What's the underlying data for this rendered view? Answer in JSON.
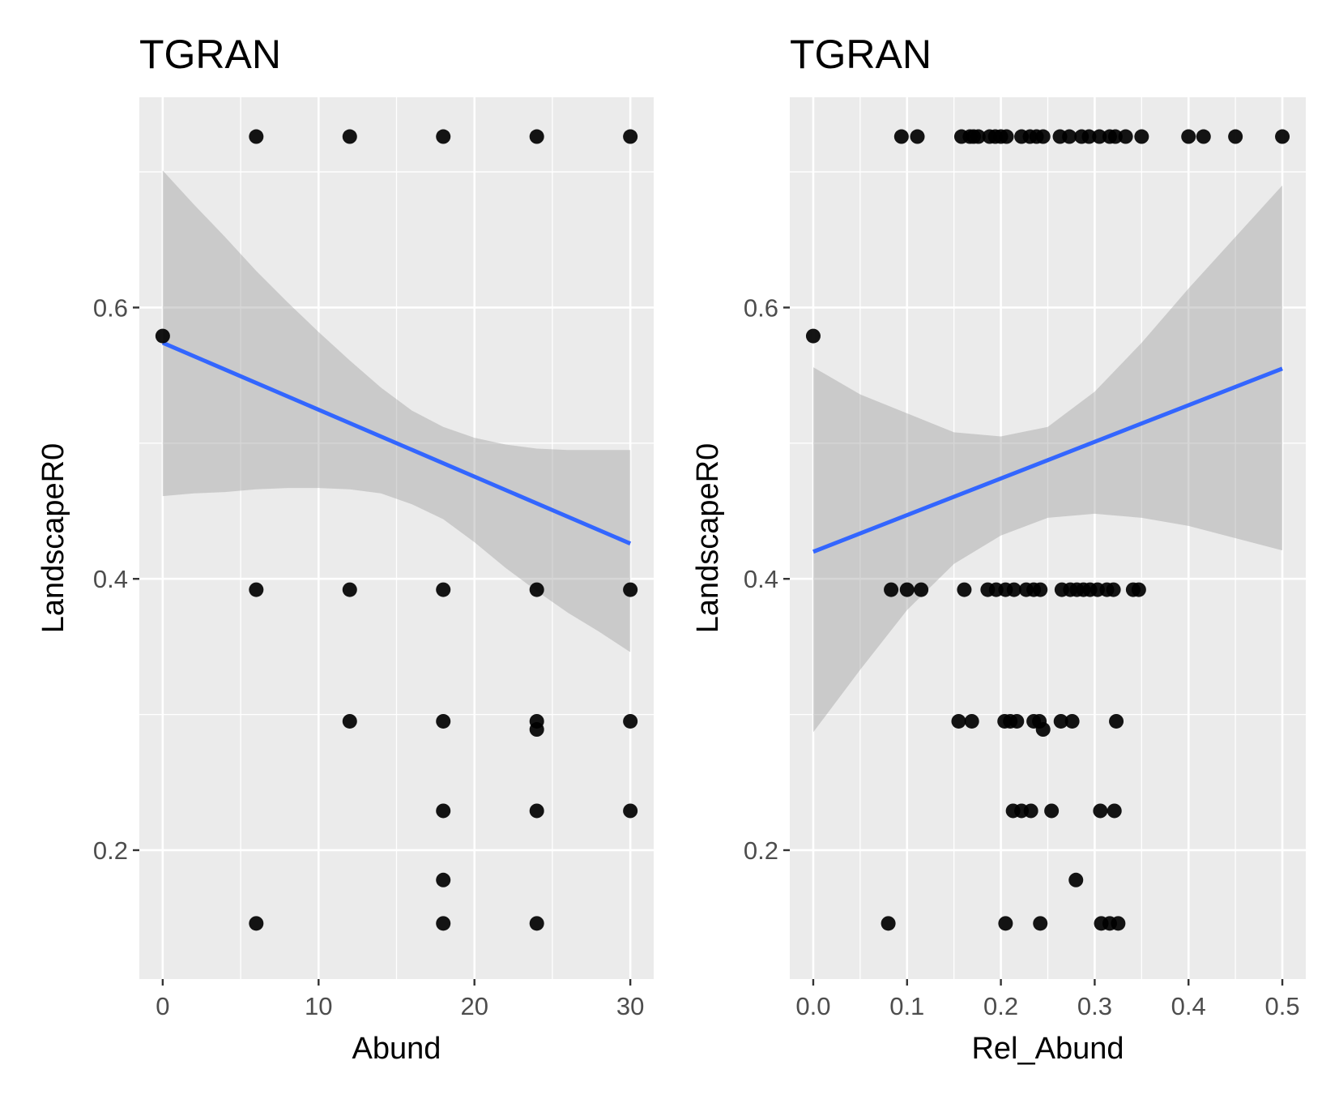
{
  "chart_data": [
    {
      "type": "scatter",
      "title": "TGRAN",
      "xlabel": "Abund",
      "ylabel": "LandscapeR0",
      "xlim": [
        -1.5,
        31.5
      ],
      "ylim": [
        0.105,
        0.755
      ],
      "x_ticks": [
        0,
        10,
        20,
        30
      ],
      "x_tick_labels": [
        "0",
        "10",
        "20",
        "30"
      ],
      "y_ticks": [
        0.2,
        0.4,
        0.6
      ],
      "y_tick_labels": [
        "0.2",
        "0.4",
        "0.6"
      ],
      "colors": {
        "point": "#000000",
        "line": "#3366ff",
        "band": "#999999",
        "panel": "#ebebeb",
        "grid": "#ffffff"
      },
      "points": [
        [
          0,
          0.579
        ],
        [
          6,
          0.726
        ],
        [
          12,
          0.726
        ],
        [
          18,
          0.726
        ],
        [
          24,
          0.726
        ],
        [
          30,
          0.726
        ],
        [
          6,
          0.392
        ],
        [
          12,
          0.392
        ],
        [
          18,
          0.392
        ],
        [
          24,
          0.392
        ],
        [
          30,
          0.392
        ],
        [
          12,
          0.295
        ],
        [
          18,
          0.295
        ],
        [
          24,
          0.295
        ],
        [
          24,
          0.289
        ],
        [
          30,
          0.295
        ],
        [
          18,
          0.229
        ],
        [
          24,
          0.229
        ],
        [
          30,
          0.229
        ],
        [
          18,
          0.178
        ],
        [
          6,
          0.146
        ],
        [
          18,
          0.146
        ],
        [
          24,
          0.146
        ]
      ],
      "fit_line": {
        "x": [
          0,
          30
        ],
        "y": [
          0.574,
          0.426
        ]
      },
      "confidence_band": {
        "x": [
          0,
          2,
          4,
          6,
          8,
          10,
          12,
          14,
          16,
          18,
          20,
          22,
          24,
          26,
          28,
          30
        ],
        "lower": [
          0.461,
          0.463,
          0.464,
          0.466,
          0.467,
          0.467,
          0.466,
          0.463,
          0.455,
          0.444,
          0.427,
          0.408,
          0.391,
          0.375,
          0.361,
          0.346
        ],
        "upper": [
          0.701,
          0.676,
          0.652,
          0.627,
          0.604,
          0.582,
          0.561,
          0.541,
          0.524,
          0.512,
          0.504,
          0.499,
          0.496,
          0.495,
          0.495,
          0.495
        ]
      }
    },
    {
      "type": "scatter",
      "title": "TGRAN",
      "xlabel": "Rel_Abund",
      "ylabel": "LandscapeR0",
      "xlim": [
        -0.025,
        0.525
      ],
      "ylim": [
        0.105,
        0.755
      ],
      "x_ticks": [
        0.0,
        0.1,
        0.2,
        0.3,
        0.4,
        0.5
      ],
      "x_tick_labels": [
        "0.0",
        "0.1",
        "0.2",
        "0.3",
        "0.4",
        "0.5"
      ],
      "y_ticks": [
        0.2,
        0.4,
        0.6
      ],
      "y_tick_labels": [
        "0.2",
        "0.4",
        "0.6"
      ],
      "colors": {
        "point": "#000000",
        "line": "#3366ff",
        "band": "#999999",
        "panel": "#ebebeb",
        "grid": "#ffffff"
      },
      "points": [
        [
          0.0,
          0.579
        ],
        [
          0.094,
          0.726
        ],
        [
          0.111,
          0.726
        ],
        [
          0.158,
          0.726
        ],
        [
          0.167,
          0.726
        ],
        [
          0.171,
          0.726
        ],
        [
          0.176,
          0.726
        ],
        [
          0.188,
          0.726
        ],
        [
          0.194,
          0.726
        ],
        [
          0.2,
          0.726
        ],
        [
          0.206,
          0.726
        ],
        [
          0.222,
          0.726
        ],
        [
          0.231,
          0.726
        ],
        [
          0.238,
          0.726
        ],
        [
          0.245,
          0.726
        ],
        [
          0.263,
          0.726
        ],
        [
          0.273,
          0.726
        ],
        [
          0.286,
          0.726
        ],
        [
          0.294,
          0.726
        ],
        [
          0.305,
          0.726
        ],
        [
          0.316,
          0.726
        ],
        [
          0.322,
          0.726
        ],
        [
          0.333,
          0.726
        ],
        [
          0.35,
          0.726
        ],
        [
          0.4,
          0.726
        ],
        [
          0.416,
          0.726
        ],
        [
          0.45,
          0.726
        ],
        [
          0.5,
          0.726
        ],
        [
          0.083,
          0.392
        ],
        [
          0.1,
          0.392
        ],
        [
          0.115,
          0.392
        ],
        [
          0.161,
          0.392
        ],
        [
          0.186,
          0.392
        ],
        [
          0.195,
          0.392
        ],
        [
          0.205,
          0.392
        ],
        [
          0.214,
          0.392
        ],
        [
          0.227,
          0.392
        ],
        [
          0.235,
          0.392
        ],
        [
          0.242,
          0.392
        ],
        [
          0.265,
          0.392
        ],
        [
          0.274,
          0.392
        ],
        [
          0.281,
          0.392
        ],
        [
          0.288,
          0.392
        ],
        [
          0.295,
          0.392
        ],
        [
          0.303,
          0.392
        ],
        [
          0.313,
          0.392
        ],
        [
          0.32,
          0.392
        ],
        [
          0.341,
          0.392
        ],
        [
          0.347,
          0.392
        ],
        [
          0.155,
          0.295
        ],
        [
          0.169,
          0.295
        ],
        [
          0.204,
          0.295
        ],
        [
          0.21,
          0.295
        ],
        [
          0.217,
          0.295
        ],
        [
          0.235,
          0.295
        ],
        [
          0.241,
          0.295
        ],
        [
          0.245,
          0.289
        ],
        [
          0.264,
          0.295
        ],
        [
          0.276,
          0.295
        ],
        [
          0.323,
          0.295
        ],
        [
          0.213,
          0.229
        ],
        [
          0.222,
          0.229
        ],
        [
          0.232,
          0.229
        ],
        [
          0.254,
          0.229
        ],
        [
          0.306,
          0.229
        ],
        [
          0.321,
          0.229
        ],
        [
          0.28,
          0.178
        ],
        [
          0.08,
          0.146
        ],
        [
          0.205,
          0.146
        ],
        [
          0.242,
          0.146
        ],
        [
          0.307,
          0.146
        ],
        [
          0.316,
          0.146
        ],
        [
          0.325,
          0.146
        ]
      ],
      "fit_line": {
        "x": [
          0.0,
          0.5
        ],
        "y": [
          0.42,
          0.555
        ]
      },
      "confidence_band": {
        "x": [
          0.0,
          0.05,
          0.1,
          0.15,
          0.2,
          0.25,
          0.3,
          0.35,
          0.4,
          0.45,
          0.5
        ],
        "lower": [
          0.287,
          0.333,
          0.377,
          0.411,
          0.432,
          0.445,
          0.448,
          0.445,
          0.439,
          0.43,
          0.421
        ],
        "upper": [
          0.556,
          0.536,
          0.522,
          0.508,
          0.505,
          0.512,
          0.538,
          0.574,
          0.614,
          0.652,
          0.69
        ]
      }
    }
  ]
}
